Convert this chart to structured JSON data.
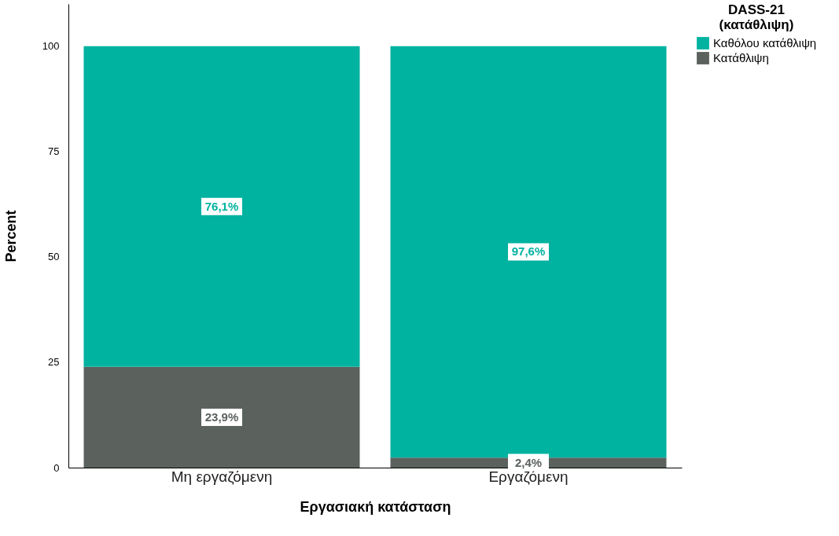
{
  "chart_data": {
    "type": "bar",
    "stacked": true,
    "xlabel": "Εργασιακή κατάσταση",
    "ylabel": "Percent",
    "legend_title": "DASS-21 (κατάθλιψη)",
    "legend": "top right",
    "grid": false,
    "categories": [
      "Μη εργαζόμενη",
      "Εργαζόμενη"
    ],
    "ylim": [
      0,
      110
    ],
    "yticks": [
      0,
      25,
      50,
      75,
      100
    ],
    "series": [
      {
        "name": "Κατάθλιψη",
        "color": "#5b625e",
        "values": [
          23.9,
          2.4
        ],
        "value_labels": [
          "23,9%",
          "2,4%"
        ]
      },
      {
        "name": "Καθόλου κατάθλιψη",
        "color": "#00b2a0",
        "values": [
          76.1,
          97.6
        ],
        "value_labels": [
          "76,1%",
          "97,6%"
        ]
      }
    ]
  }
}
